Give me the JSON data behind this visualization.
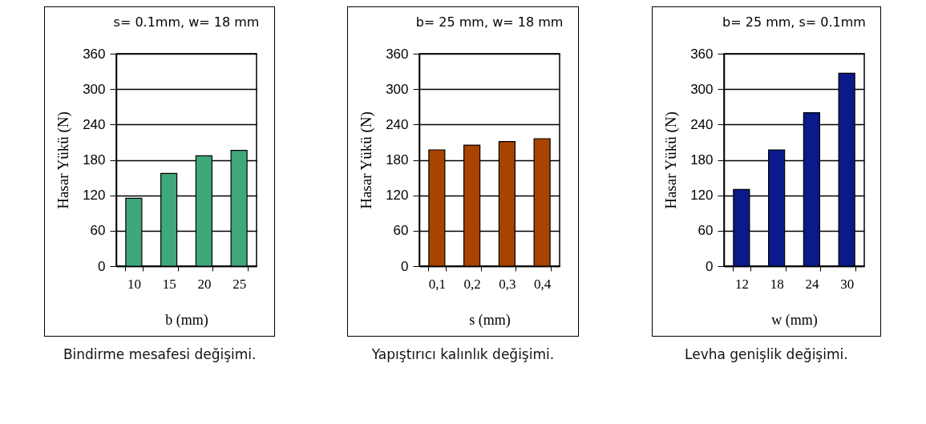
{
  "chart_data": [
    {
      "type": "bar",
      "title": "s= 0.1mm, w= 18 mm",
      "xlabel": "b (mm)",
      "ylabel": "Hasar Yükü (N)",
      "categories": [
        "10",
        "15",
        "20",
        "25"
      ],
      "values": [
        115,
        157,
        187,
        196
      ],
      "color": "#3fa77a",
      "ylim": [
        0,
        360
      ],
      "yticks": [
        0,
        60,
        120,
        180,
        240,
        300,
        360
      ],
      "grid": "y",
      "annotations": [
        "Bindirme mesafesi değişimi."
      ]
    },
    {
      "type": "bar",
      "title": "b= 25 mm, w= 18 mm",
      "xlabel": "s (mm)",
      "ylabel": "Hasar Yükü (N)",
      "categories": [
        "0,1",
        "0,2",
        "0,3",
        "0,4"
      ],
      "values": [
        197,
        205,
        211,
        216
      ],
      "color": "#a84300",
      "ylim": [
        0,
        360
      ],
      "yticks": [
        0,
        60,
        120,
        180,
        240,
        300,
        360
      ],
      "grid": "y",
      "annotations": [
        "Yapıştırıcı kalınlık değişimi."
      ]
    },
    {
      "type": "bar",
      "title": "b= 25 mm, s= 0.1mm",
      "xlabel": "w (mm)",
      "ylabel": "Hasar Yükü (N)",
      "categories": [
        "12",
        "18",
        "24",
        "30"
      ],
      "values": [
        130,
        197,
        260,
        327
      ],
      "color": "#0a1a8a",
      "ylim": [
        0,
        360
      ],
      "yticks": [
        0,
        60,
        120,
        180,
        240,
        300,
        360
      ],
      "grid": "y",
      "annotations": [
        "Levha genişlik değişimi."
      ]
    }
  ]
}
